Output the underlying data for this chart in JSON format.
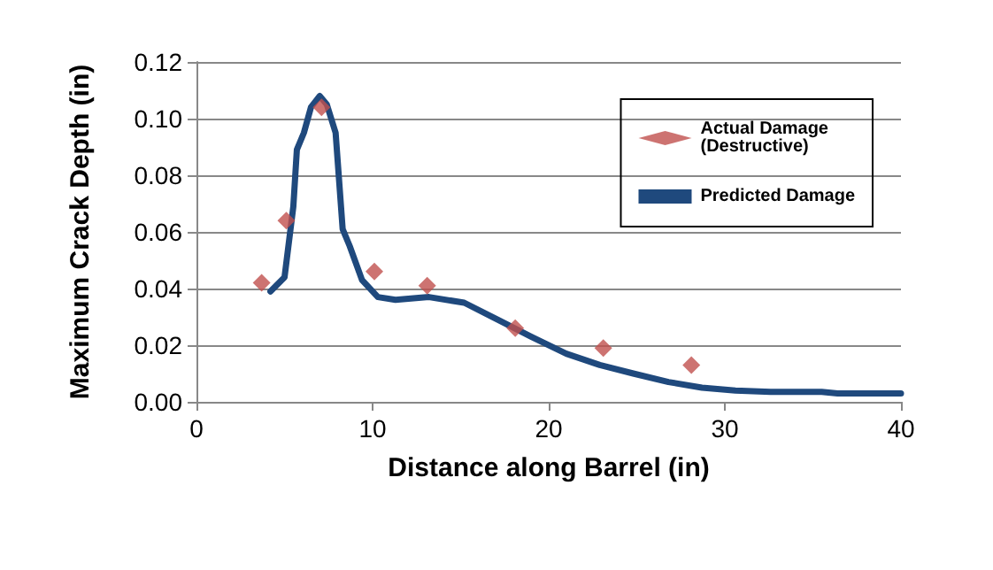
{
  "chart_data": {
    "type": "scatter",
    "xlabel": "Distance along Barrel (in)",
    "ylabel": "Maximum Crack Depth (in)",
    "xlim": [
      0,
      40
    ],
    "xticks": [
      0,
      10,
      20,
      30,
      40
    ],
    "ylim": [
      0,
      0.12
    ],
    "yticks": [
      {
        "value": 0,
        "label": "0.00"
      },
      0.02,
      0.04,
      0.06,
      0.08,
      {
        "value": 0.1,
        "label": "0.10"
      },
      0.12
    ],
    "grid": "y",
    "legend": "top right",
    "series": [
      {
        "name": "Actual Damage (Destructive)",
        "marker": "diamond",
        "color": "#c0504d",
        "x": [
          3.7,
          5.1,
          7.1,
          10.1,
          13.1,
          18.1,
          23.1,
          28.1
        ],
        "values": [
          0.042,
          0.064,
          0.104,
          0.046,
          0.041,
          0.026,
          0.019,
          0.013
        ]
      },
      {
        "name": "Predicted Damage",
        "type": "line",
        "marker": "none",
        "line_style": "solid",
        "color": "#1f497d",
        "x": [
          4.2,
          5.0,
          5.5,
          5.7,
          6.1,
          6.5,
          7.0,
          7.4,
          7.9,
          8.3,
          8.7,
          9.4,
          10.3,
          11.3,
          13.2,
          15.2,
          17.1,
          19,
          21,
          22.9,
          24.8,
          26.8,
          28.7,
          30.6,
          32.6,
          35.5,
          36.4,
          40
        ],
        "values": [
          0.039,
          0.044,
          0.069,
          0.089,
          0.095,
          0.104,
          0.108,
          0.105,
          0.095,
          0.061,
          0.055,
          0.043,
          0.037,
          0.036,
          0.037,
          0.035,
          0.029,
          0.023,
          0.017,
          0.013,
          0.01,
          0.007,
          0.005,
          0.004,
          0.0035,
          0.0035,
          0.003,
          0.003
        ]
      }
    ]
  }
}
